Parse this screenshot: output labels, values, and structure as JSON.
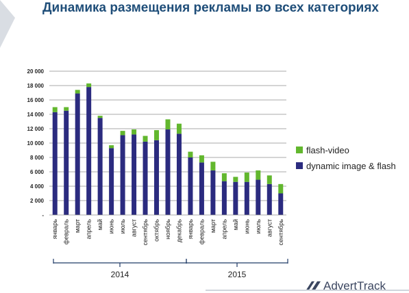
{
  "title": "Динамика размещения рекламы во всех категориях",
  "logo": {
    "text": "AdvertTrack"
  },
  "legend": [
    {
      "label": "flash-video",
      "color": "#62b72e"
    },
    {
      "label": "dynamic image & flash",
      "color": "#2b2b7f"
    }
  ],
  "chart_data": {
    "type": "bar",
    "stacked": true,
    "categories": [
      "январь",
      "февраль",
      "март",
      "апрель",
      "май",
      "июнь",
      "июль",
      "август",
      "сентябрь",
      "октябрь",
      "ноябрь",
      "декабрь",
      "январь",
      "февраль",
      "март",
      "апрель",
      "май",
      "июнь",
      "июль",
      "август",
      "сентябрь"
    ],
    "groups": [
      {
        "label": "2014",
        "count": 12
      },
      {
        "label": "2015",
        "count": 9
      }
    ],
    "series": [
      {
        "name": "dynamic image & flash",
        "color": "#2b2b7f",
        "values": [
          14300,
          14500,
          16900,
          17800,
          13500,
          9300,
          11100,
          11200,
          10200,
          10400,
          11900,
          11300,
          8000,
          7300,
          6200,
          4700,
          4600,
          4600,
          4900,
          4300,
          3000
        ]
      },
      {
        "name": "flash-video",
        "color": "#62b72e",
        "values": [
          700,
          500,
          500,
          500,
          300,
          400,
          600,
          700,
          800,
          1400,
          1400,
          1400,
          800,
          1000,
          1200,
          1100,
          700,
          1300,
          1300,
          1200,
          1300
        ]
      }
    ],
    "ylim": [
      0,
      20000
    ],
    "yticks": [
      0,
      2000,
      4000,
      6000,
      8000,
      10000,
      12000,
      14000,
      16000,
      18000,
      20000
    ],
    "ytick_labels": [
      "-",
      "2 000",
      "4 000",
      "6 000",
      "8 000",
      "10 000",
      "12 000",
      "14 000",
      "16 000",
      "18 000",
      "20 000"
    ],
    "grid": true,
    "legend_position": "right"
  }
}
